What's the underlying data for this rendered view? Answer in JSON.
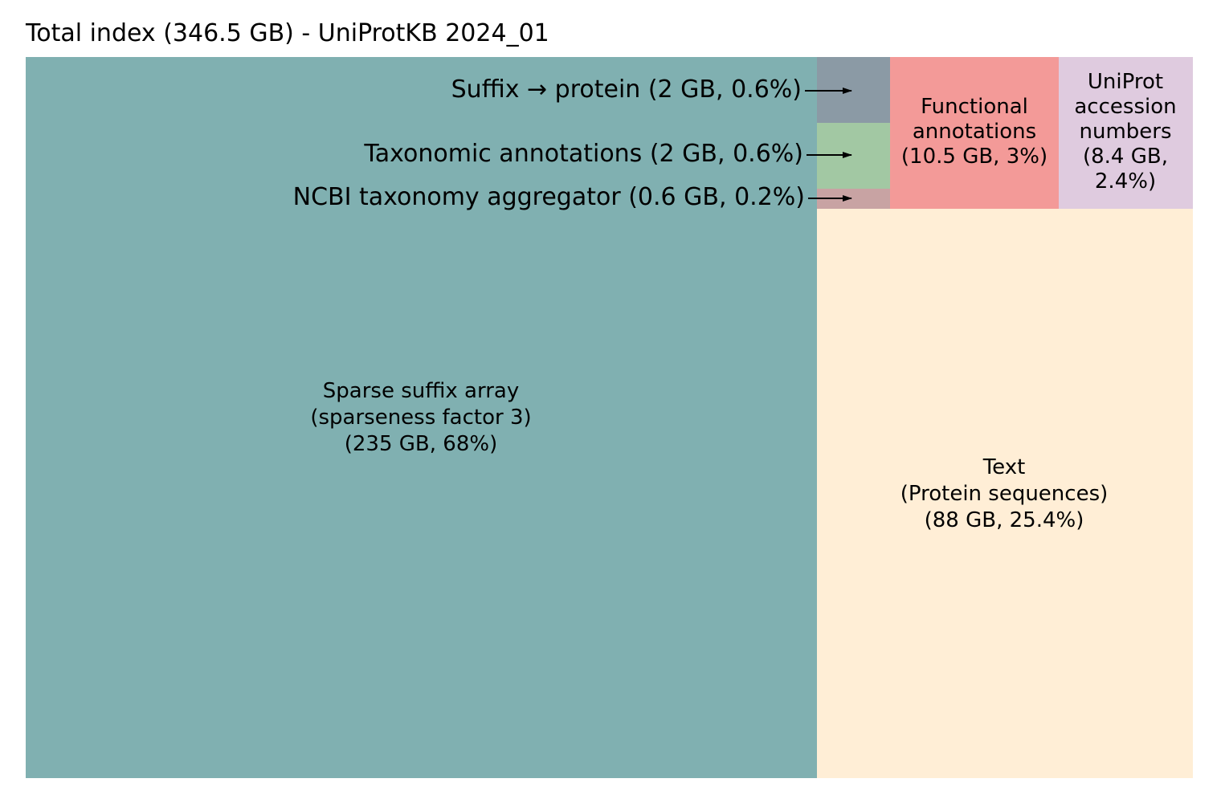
{
  "chart_data": {
    "type": "treemap",
    "title": "Total index (346.5 GB) - UniProtKB 2024_01",
    "unit": "GB",
    "items": [
      {
        "id": "sparse-suffix-array",
        "lines": [
          "Sparse suffix array",
          "(sparseness factor 3)",
          "(235 GB, 68%)"
        ],
        "size_gb": 235,
        "percent": 68,
        "color": "#80b0b1"
      },
      {
        "id": "text",
        "lines": [
          "Text",
          "(Protein sequences)",
          "(88 GB, 25.4%)"
        ],
        "size_gb": 88,
        "percent": 25.4,
        "color": "#ffeed6"
      },
      {
        "id": "functional-annotations",
        "lines": [
          "Functional",
          "annotations",
          "(10.5 GB, 3%)"
        ],
        "size_gb": 10.5,
        "percent": 3,
        "color": "#f39a98"
      },
      {
        "id": "uniprot-accession-numbers",
        "lines": [
          "UniProt",
          "accession",
          "numbers",
          "(8.4 GB,",
          "2.4%)"
        ],
        "size_gb": 8.4,
        "percent": 2.4,
        "color": "#dfcbdf"
      },
      {
        "id": "suffix-to-protein",
        "callout": "Suffix → protein (2 GB, 0.6%)",
        "size_gb": 2,
        "percent": 0.6,
        "color": "#8b9aa5"
      },
      {
        "id": "taxonomic-annotations",
        "callout": "Taxonomic annotations (2 GB, 0.6%)",
        "size_gb": 2,
        "percent": 0.6,
        "color": "#a2c8a3"
      },
      {
        "id": "ncbi-taxonomy-aggregator",
        "callout": "NCBI taxonomy aggregator (0.6 GB, 0.2%)",
        "size_gb": 0.6,
        "percent": 0.2,
        "color": "#c8a3a3"
      }
    ]
  }
}
